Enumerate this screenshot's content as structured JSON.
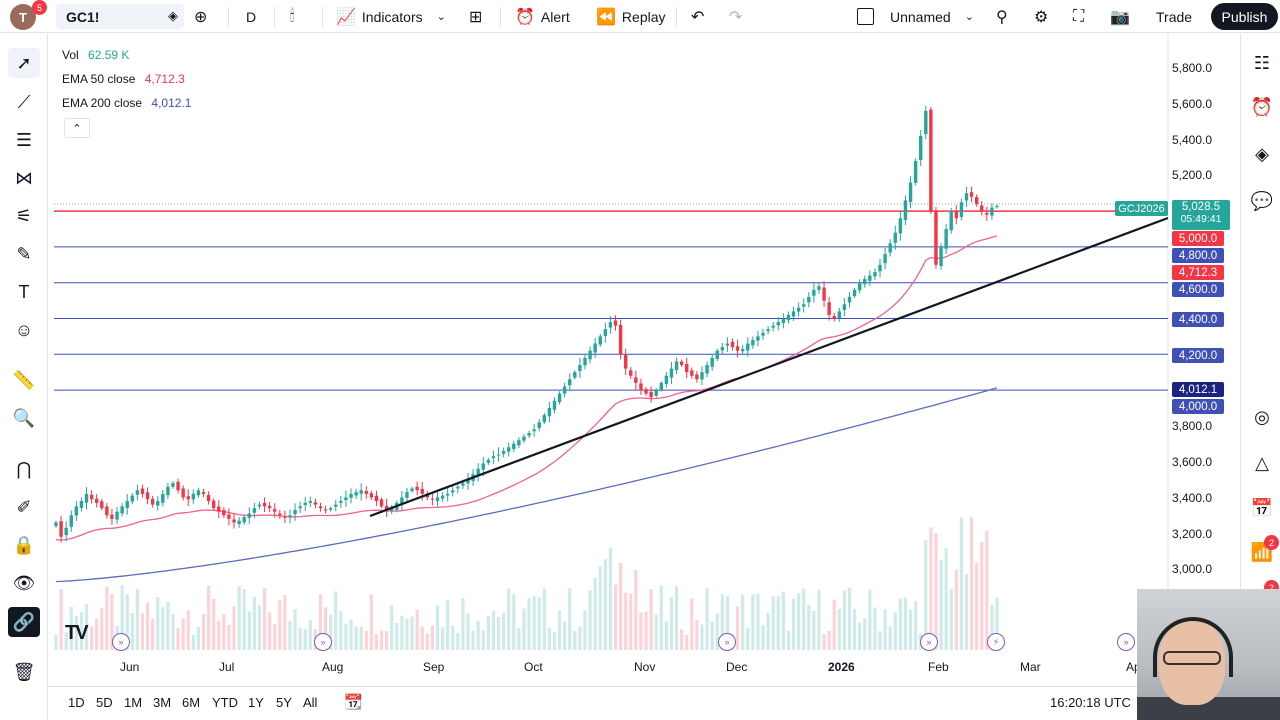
{
  "topbar": {
    "avatar_letter": "T",
    "avatar_badge": "5",
    "symbol": "GC1!",
    "interval": "D",
    "indicators_label": "Indicators",
    "alert_label": "Alert",
    "replay_label": "Replay",
    "layout_name": "Unnamed",
    "trade_label": "Trade",
    "publish_label": "Publish"
  },
  "legend": {
    "vol_label": "Vol",
    "vol_value": "62.59 K",
    "ema50_label": "EMA 50 close",
    "ema50_value": "4,712.3",
    "ema200_label": "EMA 200 close",
    "ema200_value": "4,012.1",
    "vol_color": "#26a69a",
    "ema50_color": "#f23645",
    "ema200_color": "#3f51b5"
  },
  "price_axis": {
    "labels": [
      "5,800.0",
      "5,600.0",
      "5,400.0",
      "5,200.0",
      "3,800.0",
      "3,600.0",
      "3,400.0",
      "3,200.0",
      "3,000.0"
    ],
    "tags": {
      "symbol_tag": "GCJ2026",
      "last_price": "5,028.5",
      "countdown": "05:49:41",
      "level_5000": "5,000.0",
      "level_4800": "4,800.0",
      "ema50": "4,712.3",
      "level_4600": "4,600.0",
      "level_4400": "4,400.0",
      "level_4200": "4,200.0",
      "ema200": "4,012.1",
      "level_4000": "4,000.0"
    }
  },
  "time_axis": {
    "labels": [
      "Jun",
      "Jul",
      "Aug",
      "Sep",
      "Oct",
      "Nov",
      "Dec",
      "2026",
      "Feb",
      "Mar",
      "Ap"
    ]
  },
  "bottombar": {
    "ranges": [
      "1D",
      "5D",
      "1M",
      "3M",
      "6M",
      "YTD",
      "1Y",
      "5Y",
      "All"
    ],
    "clock": "16:20:18 UTC"
  },
  "rightbar": {
    "badge_1": "2",
    "badge_2": "2"
  },
  "chart_data": {
    "type": "candlestick",
    "symbol": "GC1!",
    "ylim": [
      2900,
      5900
    ],
    "horizontal_levels": [
      5000,
      4800,
      4600,
      4400,
      4200,
      4000
    ],
    "ema50_last": 4712.3,
    "ema200_last": 4012.1,
    "last_price": 5028.5,
    "trendline": {
      "from": [
        "Aug",
        3300
      ],
      "to": [
        "Feb",
        5100
      ]
    },
    "colors": {
      "up": "#26a69a",
      "down": "#f23645",
      "level": "#3f51b5",
      "last": "#f23645"
    },
    "close_path": [
      3260,
      3180,
      3230,
      3300,
      3350,
      3380,
      3420,
      3390,
      3370,
      3340,
      3300,
      3280,
      3320,
      3350,
      3380,
      3410,
      3440,
      3420,
      3390,
      3360,
      3380,
      3420,
      3460,
      3480,
      3440,
      3400,
      3390,
      3420,
      3440,
      3420,
      3380,
      3340,
      3320,
      3300,
      3280,
      3260,
      3270,
      3290,
      3310,
      3340,
      3360,
      3350,
      3340,
      3320,
      3300,
      3290,
      3300,
      3330,
      3350,
      3370,
      3380,
      3360,
      3340,
      3330,
      3340,
      3360,
      3380,
      3400,
      3420,
      3430,
      3440,
      3420,
      3400,
      3380,
      3350,
      3330,
      3340,
      3370,
      3400,
      3430,
      3450,
      3440,
      3420,
      3400,
      3390,
      3400,
      3410,
      3420,
      3440,
      3460,
      3480,
      3500,
      3530,
      3560,
      3590,
      3610,
      3630,
      3640,
      3660,
      3680,
      3700,
      3720,
      3740,
      3760,
      3780,
      3820,
      3860,
      3900,
      3940,
      3980,
      4020,
      4060,
      4100,
      4140,
      4180,
      4220,
      4260,
      4300,
      4340,
      4380,
      4360,
      4200,
      4120,
      4080,
      4040,
      4000,
      3980,
      3960,
      4000,
      4040,
      4080,
      4120,
      4160,
      4140,
      4100,
      4080,
      4060,
      4100,
      4140,
      4180,
      4220,
      4240,
      4260,
      4240,
      4220,
      4230,
      4260,
      4280,
      4300,
      4320,
      4340,
      4360,
      4380,
      4400,
      4420,
      4440,
      4460,
      4480,
      4520,
      4560,
      4580,
      4500,
      4420,
      4400,
      4440,
      4480,
      4520,
      4560,
      4600,
      4620,
      4640,
      4660,
      4700,
      4760,
      4820,
      4880,
      4960,
      5060,
      5160,
      5280,
      5420,
      5560,
      5000,
      4700,
      4800,
      4900,
      5000,
      4960,
      5050,
      5100,
      5080,
      5040,
      5000,
      4980,
      5020,
      5028
    ]
  }
}
